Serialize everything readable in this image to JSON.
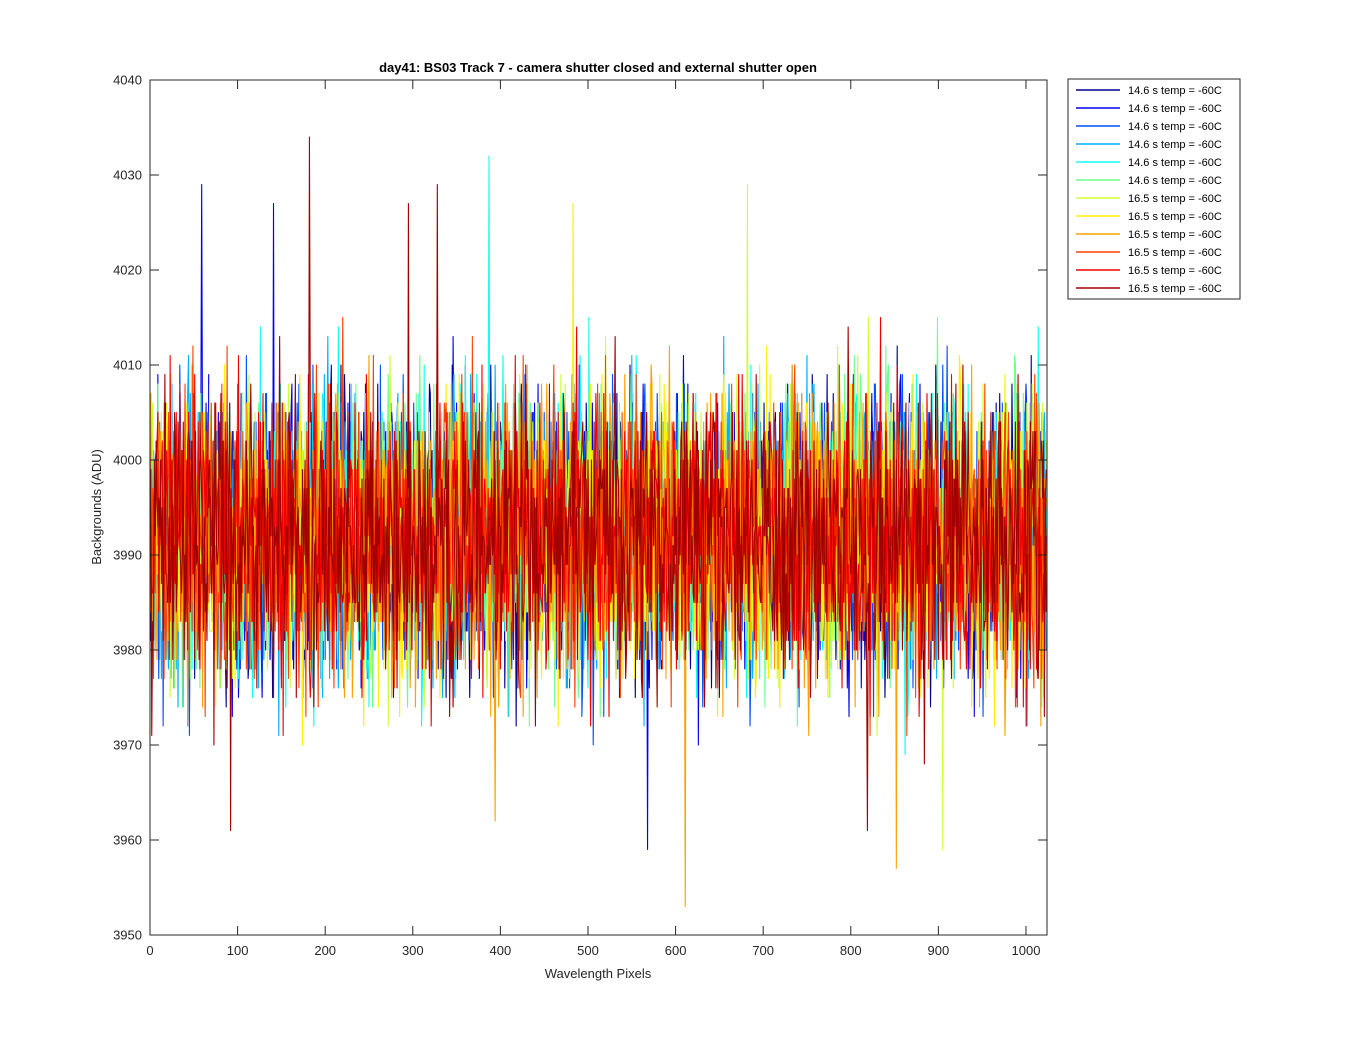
{
  "chart_data": {
    "type": "line",
    "title": "day41: BS03  Track 7 - camera shutter closed and external shutter open",
    "xlabel": "Wavelength Pixels",
    "ylabel": "Backgrounds (ADU)",
    "xlim": [
      0,
      1024
    ],
    "ylim": [
      3950,
      4040
    ],
    "xticks": [
      0,
      100,
      200,
      300,
      400,
      500,
      600,
      700,
      800,
      900,
      1000
    ],
    "yticks": [
      3950,
      3960,
      3970,
      3980,
      3990,
      4000,
      4010,
      4020,
      4030,
      4040
    ],
    "grid": false,
    "legend_position": "outside-top-right",
    "points_per_series": 1024,
    "series": [
      {
        "name": "14.6 s temp = -60C",
        "color": "#00008f",
        "mean": 3992,
        "std": 7.5,
        "spikes": []
      },
      {
        "name": "14.6 s temp = -60C",
        "color": "#0000ef",
        "mean": 3992,
        "std": 7.5,
        "spikes": [
          [
            59,
            4029
          ],
          [
            141,
            4027
          ],
          [
            568,
            3959
          ]
        ]
      },
      {
        "name": "14.6 s temp = -60C",
        "color": "#0050ff",
        "mean": 3992,
        "std": 7.5,
        "spikes": []
      },
      {
        "name": "14.6 s temp = -60C",
        "color": "#00afff",
        "mean": 3992,
        "std": 7.5,
        "spikes": []
      },
      {
        "name": "14.6 s temp = -60C",
        "color": "#10ffef",
        "mean": 3992,
        "std": 7.5,
        "spikes": [
          [
            387,
            4032
          ]
        ]
      },
      {
        "name": "14.6 s temp = -60C",
        "color": "#6fff8f",
        "mean": 3992,
        "std": 7.5,
        "spikes": []
      },
      {
        "name": "16.5 s temp = -60C",
        "color": "#cfff30",
        "mean": 3992,
        "std": 7.5,
        "spikes": [
          [
            682,
            4029
          ],
          [
            905,
            3959
          ]
        ]
      },
      {
        "name": "16.5 s temp = -60C",
        "color": "#ffef00",
        "mean": 3992,
        "std": 7.5,
        "spikes": [
          [
            483,
            4027
          ]
        ]
      },
      {
        "name": "16.5 s temp = -60C",
        "color": "#ff9f00",
        "mean": 3992,
        "std": 7.5,
        "spikes": [
          [
            611,
            3953
          ],
          [
            852,
            3957
          ],
          [
            394,
            3962
          ]
        ]
      },
      {
        "name": "16.5 s temp = -60C",
        "color": "#ff4000",
        "mean": 3992,
        "std": 7.5,
        "spikes": []
      },
      {
        "name": "16.5 s temp = -60C",
        "color": "#ef0000",
        "mean": 3992,
        "std": 7.5,
        "spikes": []
      },
      {
        "name": "16.5 s temp = -60C",
        "color": "#a00000",
        "mean": 3992,
        "std": 7.5,
        "spikes": [
          [
            182,
            4034
          ],
          [
            295,
            4027
          ],
          [
            328,
            4029
          ],
          [
            92,
            3961
          ],
          [
            819,
            3961
          ]
        ]
      }
    ]
  }
}
